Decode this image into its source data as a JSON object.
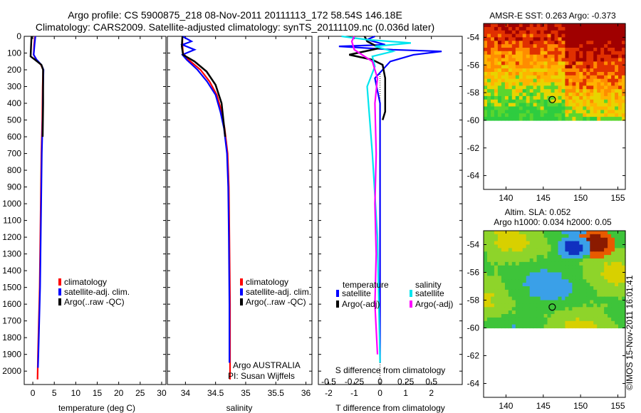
{
  "header": {
    "line1": "Argo profile: CS 5900875_218 08-Nov-2011 20111113_172 58.54S 146.18E",
    "line2": "Climatology: CARS2009. Satellite-adjusted climatology: synTS_20111109.nc (0.036d later)"
  },
  "colors": {
    "climatology": "#ff0000",
    "satellite": "#0000ff",
    "argo": "#000000",
    "sal_sat": "#00e5ee",
    "sal_argo": "#ff00ff"
  },
  "chart_data": [
    {
      "type": "line",
      "name": "temperature",
      "xlabel": "temperature (deg C)",
      "ylabel": "",
      "xlim": [
        -2,
        31
      ],
      "ylim": [
        2080,
        0
      ],
      "xticks": [
        0,
        5,
        10,
        15,
        20,
        25,
        30
      ],
      "yticks": [
        0,
        100,
        200,
        300,
        400,
        500,
        600,
        700,
        800,
        900,
        1000,
        1100,
        1200,
        1300,
        1400,
        1500,
        1600,
        1700,
        1800,
        1900,
        2000
      ],
      "legend": [
        "climatology",
        "satellite-adj. clim.",
        "Argo(..raw -QC)"
      ],
      "series": [
        {
          "name": "climatology",
          "color": "#ff0000",
          "x": [
            0.5,
            0.3,
            0.2,
            0.8,
            1.9,
            2.4,
            2.3,
            2.2,
            2.0,
            1.9,
            1.8,
            1.7,
            1.6,
            1.4,
            1.2,
            1.1
          ],
          "y": [
            0,
            50,
            110,
            140,
            170,
            200,
            300,
            500,
            700,
            900,
            1100,
            1300,
            1500,
            1700,
            1900,
            2050
          ]
        },
        {
          "name": "satellite-adj. clim.",
          "color": "#0000ff",
          "x": [
            0.6,
            0.4,
            0.2,
            0.9,
            2.0,
            2.5,
            2.4,
            2.3,
            2.1,
            2.0,
            1.9,
            1.8,
            1.7,
            1.5,
            1.3,
            1.2
          ],
          "y": [
            0,
            50,
            110,
            140,
            170,
            200,
            300,
            500,
            700,
            900,
            1100,
            1300,
            1500,
            1700,
            1900,
            1980
          ]
        },
        {
          "name": "Argo(..raw -QC)",
          "color": "#000000",
          "x": [
            -0.3,
            -0.4,
            -0.5,
            0.5,
            2.0,
            2.4,
            2.4,
            2.3
          ],
          "y": [
            0,
            60,
            120,
            140,
            170,
            200,
            400,
            600
          ]
        }
      ]
    },
    {
      "type": "line",
      "name": "salinity",
      "xlabel": "salinity",
      "xlim": [
        33.7,
        36.1
      ],
      "ylim": [
        2080,
        0
      ],
      "xticks": [
        34,
        34.5,
        35,
        35.5,
        36
      ],
      "legend": [
        "climatology",
        "satellite-adj. clim.",
        "Argo(..raw -QC)"
      ],
      "annotation": [
        "Argo AUSTRALIA",
        "PI: Susan Wijffels"
      ],
      "series": [
        {
          "name": "climatology",
          "color": "#ff0000",
          "x": [
            33.95,
            33.95,
            33.96,
            34.05,
            34.25,
            34.4,
            34.52,
            34.6,
            34.65,
            34.7,
            34.72,
            34.73,
            34.74,
            34.74
          ],
          "y": [
            0,
            50,
            100,
            140,
            200,
            270,
            350,
            450,
            550,
            700,
            900,
            1200,
            1600,
            2050
          ]
        },
        {
          "name": "satellite-adj. clim.",
          "color": "#0000ff",
          "x": [
            33.95,
            34.1,
            33.95,
            34.15,
            33.95,
            34.02,
            34.2,
            34.36,
            34.5,
            34.58,
            34.64,
            34.69,
            34.71,
            34.72,
            34.73,
            34.73
          ],
          "y": [
            0,
            30,
            50,
            80,
            110,
            140,
            200,
            270,
            350,
            450,
            550,
            700,
            900,
            1200,
            1600,
            1950
          ]
        },
        {
          "name": "Argo(..raw -QC)",
          "color": "#000000",
          "x": [
            33.95,
            33.94,
            33.96,
            34.15,
            34.35,
            34.5,
            34.6,
            34.66
          ],
          "y": [
            0,
            60,
            110,
            150,
            210,
            290,
            400,
            600
          ]
        }
      ]
    },
    {
      "type": "line",
      "name": "difference",
      "xlabel": "T difference from climatology",
      "xlabel_top": "S difference from climatology",
      "xlim": [
        -2.4,
        3.2
      ],
      "ylim": [
        2080,
        0
      ],
      "xticks": [
        -2,
        -1,
        0,
        1,
        2
      ],
      "xtick_labels_top": [
        "-0.5",
        "-0.25",
        "0",
        "0.25",
        "0.5"
      ],
      "legend_temp_title": "temperature",
      "legend_sal_title": "salinity",
      "legend": [
        "satellite",
        "Argo(-adj)",
        "satellite",
        "Argo(-adj)"
      ],
      "series": [
        {
          "name": "satellite",
          "color": "#0000ff",
          "x": [
            -0.2,
            -0.5,
            0.2,
            -1.6,
            0.5,
            2.4,
            1.3,
            0.4,
            -0.2,
            0.0,
            0.0,
            0.0,
            0.0,
            0.0
          ],
          "y": [
            0,
            20,
            50,
            60,
            80,
            90,
            110,
            150,
            250,
            400,
            700,
            1000,
            1500,
            1950
          ]
        },
        {
          "name": "Argo(-adj)",
          "color": "#000000",
          "x": [
            -0.6,
            -0.5,
            0.0,
            -1.2,
            -0.3,
            0.1,
            0.2,
            0.2,
            0.2,
            0.1
          ],
          "y": [
            0,
            30,
            70,
            110,
            140,
            170,
            250,
            350,
            450,
            500
          ]
        },
        {
          "name": "satellite",
          "color": "#00e5ee",
          "x": [
            -1.5,
            -0.5,
            1.2,
            -0.2,
            0.5,
            -0.3,
            -0.2,
            -0.5,
            -0.3,
            -0.1,
            0.0
          ],
          "y": [
            0,
            20,
            40,
            60,
            90,
            120,
            180,
            300,
            700,
            1200,
            1950
          ]
        },
        {
          "name": "Argo(-adj)",
          "color": "#ff00ff",
          "x": [
            -1.0,
            -1.1,
            -1.0,
            -0.3,
            -0.1,
            -0.2,
            -0.15,
            -0.2,
            -0.15,
            -0.2,
            -0.1
          ],
          "y": [
            0,
            30,
            80,
            150,
            250,
            400,
            700,
            1000,
            1300,
            1600,
            1900
          ]
        }
      ]
    },
    {
      "type": "heatmap",
      "name": "sst_map",
      "title": "AMSR-E SST: 0.263 Argo: -0.373",
      "xlim": [
        137,
        156
      ],
      "ylim": [
        -65,
        -53
      ],
      "xticks": [
        140,
        145,
        150,
        155
      ],
      "yticks": [
        -54,
        -56,
        -58,
        -60,
        -62,
        -64
      ],
      "marker": {
        "lon": 146.2,
        "lat": -58.5
      },
      "data_lat_min": -60
    },
    {
      "type": "heatmap",
      "name": "sla_map",
      "title": [
        "Altim. SLA: 0.052",
        "Argo h1000: 0.034 h2000: 0.05"
      ],
      "xlim": [
        137,
        156
      ],
      "ylim": [
        -65,
        -53
      ],
      "xticks": [
        140,
        145,
        150,
        155
      ],
      "yticks": [
        -54,
        -56,
        -58,
        -60,
        -62,
        -64
      ],
      "marker": {
        "lon": 146.2,
        "lat": -58.5
      },
      "data_lat_min": -60
    }
  ],
  "side_label": "©IMOS 15-Nov-2011 16:01:41"
}
